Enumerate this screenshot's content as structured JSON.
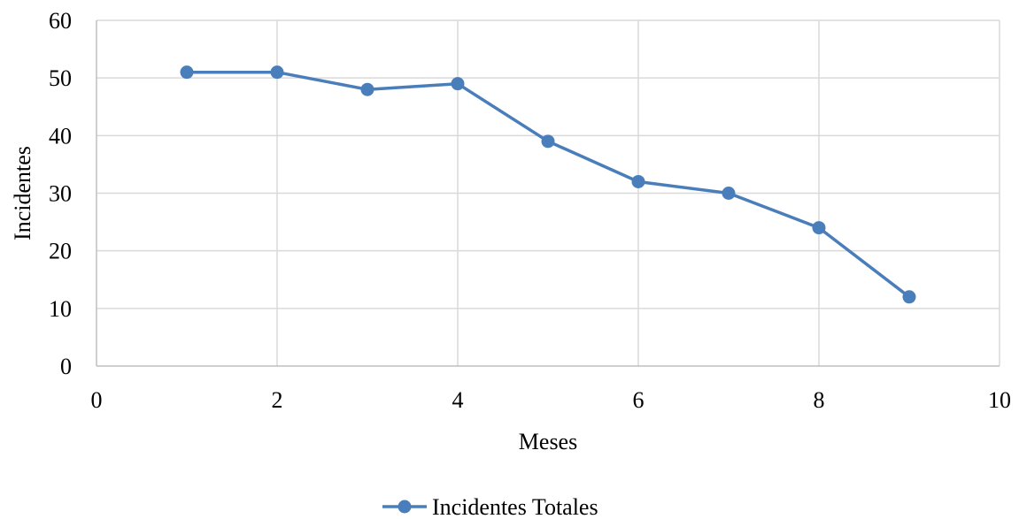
{
  "chart_data": {
    "type": "line",
    "title": "",
    "xlabel": "Meses",
    "ylabel": "Incidentes",
    "xlim": [
      0,
      10
    ],
    "ylim": [
      0,
      60
    ],
    "x_ticks": [
      0,
      2,
      4,
      6,
      8,
      10
    ],
    "y_ticks": [
      0,
      10,
      20,
      30,
      40,
      50,
      60
    ],
    "grid": true,
    "legend_position": "bottom",
    "series": [
      {
        "name": "Incidentes Totales",
        "color": "#4a7ebb",
        "marker": "circle",
        "x": [
          1,
          2,
          3,
          4,
          5,
          6,
          7,
          8,
          9
        ],
        "y": [
          51,
          51,
          48,
          49,
          39,
          32,
          30,
          24,
          12
        ]
      }
    ]
  }
}
